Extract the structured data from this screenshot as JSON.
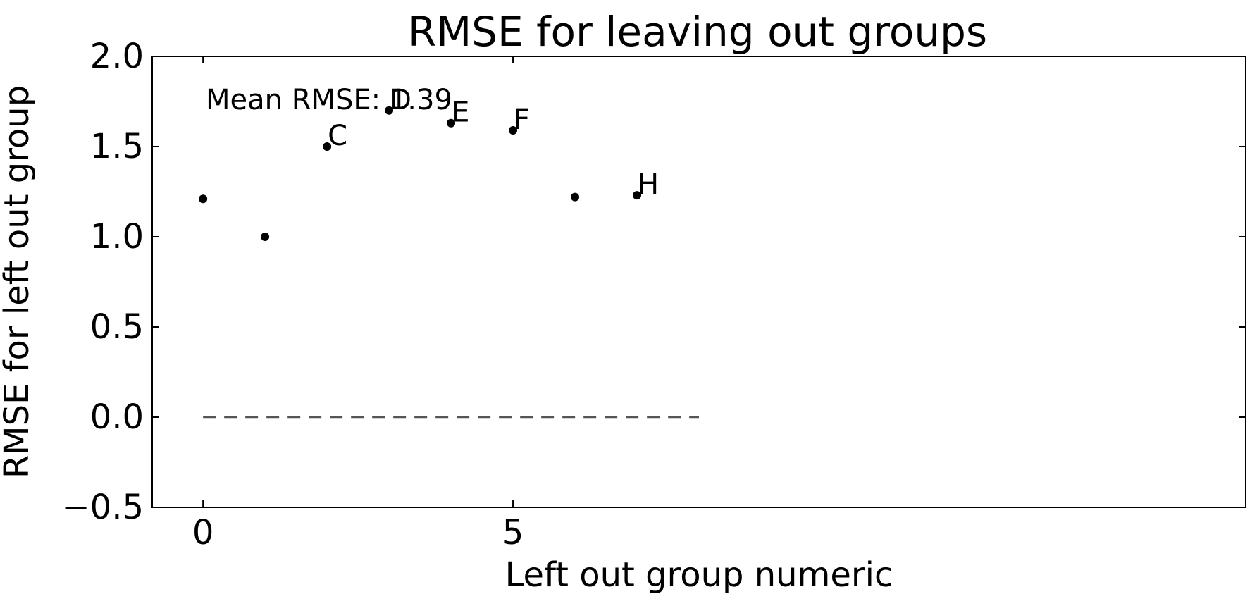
{
  "chart_data": {
    "type": "scatter",
    "title": "RMSE for leaving out groups",
    "xlabel": "Left out group numeric",
    "ylabel": "RMSE for left out group",
    "xlim": [
      -0.82,
      16.82
    ],
    "ylim": [
      -0.5,
      2.0
    ],
    "xticks": [
      0,
      5
    ],
    "xtick_labels": [
      "0",
      "5"
    ],
    "yticks": [
      -0.5,
      0.0,
      0.5,
      1.0,
      1.5,
      2.0
    ],
    "ytick_labels": [
      "−0.5",
      "0.0",
      "0.5",
      "1.0",
      "1.5",
      "2.0"
    ],
    "grid": false,
    "points": [
      {
        "x": 0,
        "y": 1.21,
        "label": ""
      },
      {
        "x": 1,
        "y": 1.0,
        "label": ""
      },
      {
        "x": 2,
        "y": 1.5,
        "label": "C"
      },
      {
        "x": 3,
        "y": 1.7,
        "label": "D"
      },
      {
        "x": 4,
        "y": 1.63,
        "label": "E"
      },
      {
        "x": 5,
        "y": 1.59,
        "label": "F"
      },
      {
        "x": 6,
        "y": 1.22,
        "label": ""
      },
      {
        "x": 7,
        "y": 1.23,
        "label": "H"
      }
    ],
    "reference_line": {
      "y": 0.0,
      "x_range": [
        0,
        8
      ],
      "style": "dashed",
      "color": "#555555"
    },
    "annotation": "Mean RMSE: 1.39",
    "point_color": "#000000"
  }
}
